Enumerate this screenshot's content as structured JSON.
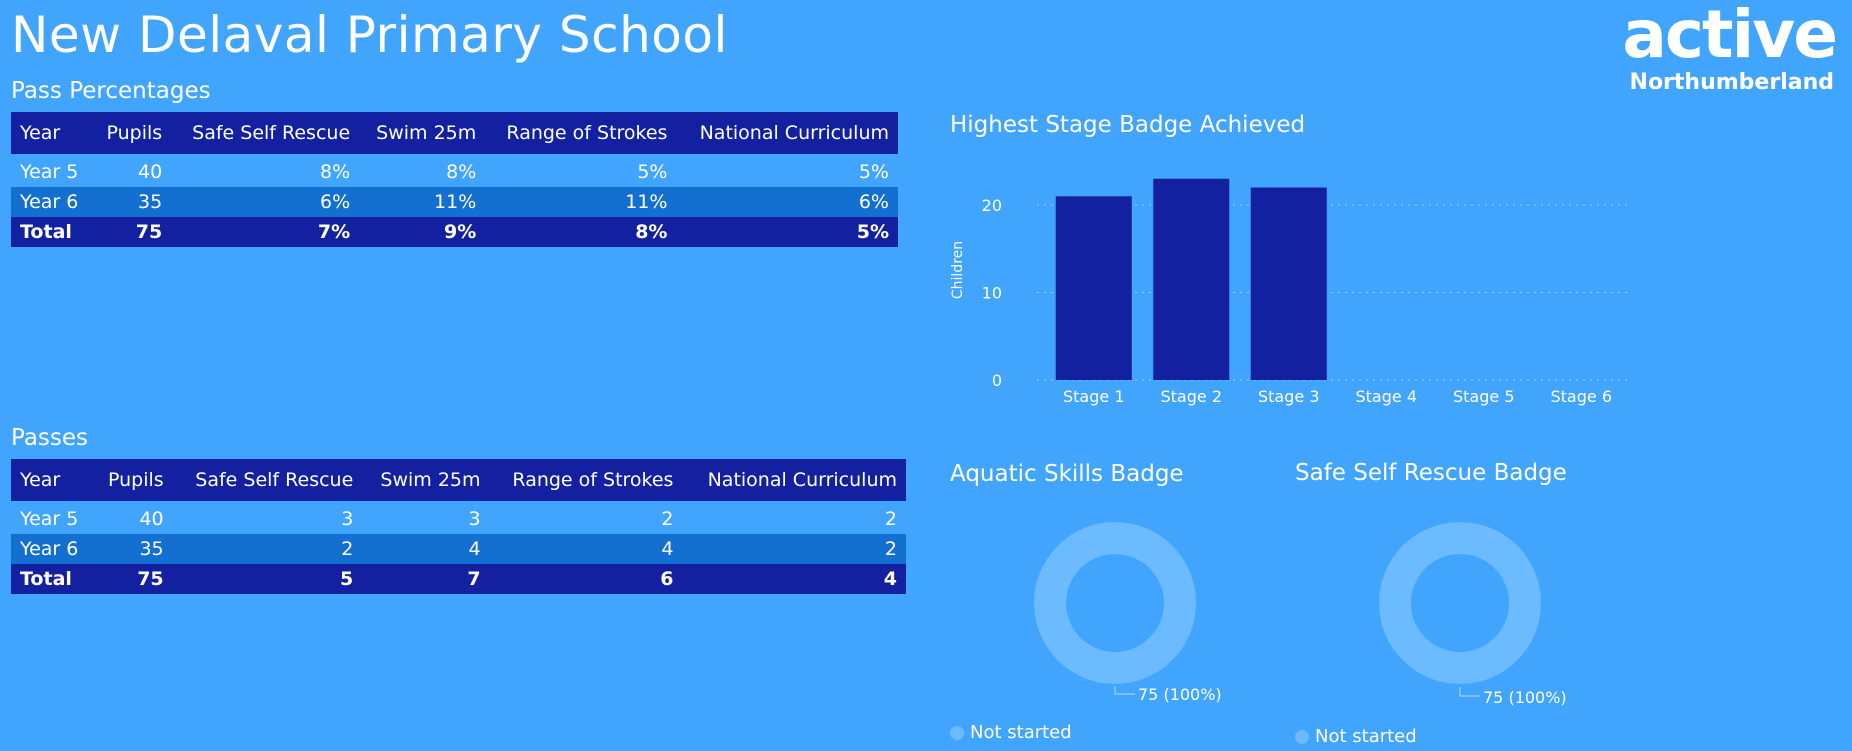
{
  "page": {
    "title": "New Delaval Primary School"
  },
  "logo": {
    "line1": "active",
    "line2": "Northumberland"
  },
  "pass_percentages": {
    "title": "Pass Percentages",
    "headers": [
      "Year",
      "Pupils",
      "Safe Self Rescue",
      "Swim 25m",
      "Range of Strokes",
      "National Curriculum"
    ],
    "rows": [
      [
        "Year 5",
        "40",
        "8%",
        "8%",
        "5%",
        "5%"
      ],
      [
        "Year 6",
        "35",
        "6%",
        "11%",
        "11%",
        "6%"
      ]
    ],
    "total": [
      "Total",
      "75",
      "7%",
      "9%",
      "8%",
      "5%"
    ]
  },
  "passes": {
    "title": "Passes",
    "headers": [
      "Year",
      "Pupils",
      "Safe Self Rescue",
      "Swim 25m",
      "Range of Strokes",
      "National Curriculum"
    ],
    "rows": [
      [
        "Year 5",
        "40",
        "3",
        "3",
        "2",
        "2"
      ],
      [
        "Year 6",
        "35",
        "2",
        "4",
        "4",
        "2"
      ]
    ],
    "total": [
      "Total",
      "75",
      "5",
      "7",
      "6",
      "4"
    ]
  },
  "chart_data": [
    {
      "type": "bar",
      "title": "Highest Stage Badge Achieved",
      "categories": [
        "Stage 1",
        "Stage 2",
        "Stage 3",
        "Stage 4",
        "Stage 5",
        "Stage 6"
      ],
      "values": [
        21,
        23,
        22,
        0,
        0,
        0
      ],
      "xlabel": "",
      "ylabel": "Children",
      "ylim": [
        0,
        24
      ],
      "yticks": [
        0,
        10,
        20
      ],
      "grid": true,
      "color": "#1321a0"
    },
    {
      "type": "pie",
      "title": "Aquatic Skills Badge",
      "labels": [
        "Not started"
      ],
      "values": [
        75
      ],
      "data_label": "75 (100%)",
      "color": "#6cbaff"
    },
    {
      "type": "pie",
      "title": "Safe Self Rescue Badge",
      "labels": [
        "Not started"
      ],
      "values": [
        75
      ],
      "data_label": "75 (100%)",
      "color": "#6cbaff"
    }
  ]
}
